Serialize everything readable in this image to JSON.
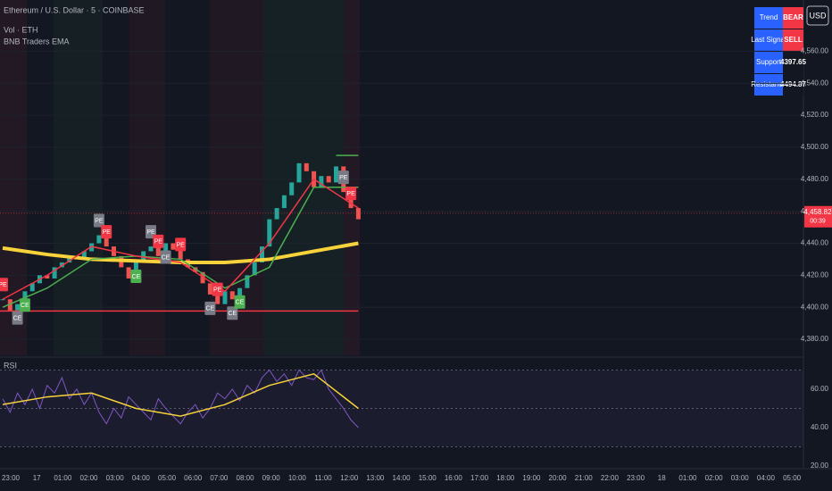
{
  "chart_data": {
    "type": "candlestick",
    "title": "Ethereum / U.S. Dollar · 5 · COINBASE",
    "indicators": [
      "Vol · ETH",
      "BNB Traders EMA"
    ],
    "currency": "USD",
    "up_color": "#26a69a",
    "down_color": "#ef5350",
    "close": [
      4405,
      4398,
      4402,
      4410,
      4415,
      4420,
      4418,
      4425,
      4428,
      4432,
      4430,
      4435,
      4440,
      4445,
      4438,
      4432,
      4425,
      4418,
      4428,
      4435,
      4438,
      4432,
      4440,
      4436,
      4430,
      4425,
      4422,
      4415,
      4408,
      4402,
      4410,
      4405,
      4412,
      4420,
      4428,
      4438,
      4455,
      4462,
      4470,
      4478,
      4490,
      4485,
      4475,
      4482,
      4478,
      4488,
      4472,
      4462,
      4455
    ],
    "ylim": [
      4370,
      4592
    ],
    "yticks": [
      {
        "value": 4380,
        "label": "4,380.00"
      },
      {
        "value": 4400,
        "label": "4,400.00"
      },
      {
        "value": 4420,
        "label": "4,420.00"
      },
      {
        "value": 4440,
        "label": "4,440.00"
      },
      {
        "value": 4460,
        "label": "4,460.00"
      },
      {
        "value": 4480,
        "label": "4,480.00"
      },
      {
        "value": 4500,
        "label": "4,500.00"
      },
      {
        "value": 4520,
        "label": "4,520.00"
      },
      {
        "value": 4540,
        "label": "4,540.00"
      },
      {
        "value": 4560,
        "label": "4,560.00"
      }
    ],
    "last_price": {
      "value": 4458.82,
      "label": "4,458.82",
      "countdown": "00:39"
    },
    "series": [
      {
        "color": "#f7d23a",
        "x": [
          0,
          6,
          12,
          18,
          24,
          30,
          36,
          42,
          48
        ],
        "values": [
          4437,
          4433,
          4430,
          4429,
          4428,
          4428,
          4430,
          4435,
          4440
        ]
      },
      {
        "color": "#4caf50",
        "x": [
          0,
          6,
          12,
          18,
          24,
          30,
          36,
          42,
          48
        ],
        "values": [
          4400,
          4412,
          4430,
          4432,
          4430,
          4412,
          4425,
          4475,
          4475
        ]
      },
      {
        "color": "#f23645",
        "x": [
          0,
          6,
          12,
          18,
          24,
          30,
          36,
          42,
          48
        ],
        "values": [
          4405,
          4420,
          4438,
          4432,
          4428,
          4410,
          4440,
          4480,
          4462
        ]
      }
    ],
    "signals": [
      {
        "label": "PE",
        "index": 0,
        "color": "#f23645"
      },
      {
        "label": "CE",
        "index": 2,
        "color": "#787b86"
      },
      {
        "label": "CE",
        "index": 3,
        "color": "#4caf50"
      },
      {
        "label": "PE",
        "index": 13,
        "color": "#787b86"
      },
      {
        "label": "PE",
        "index": 14,
        "color": "#f23645"
      },
      {
        "label": "CE",
        "index": 18,
        "color": "#4caf50"
      },
      {
        "label": "PE",
        "index": 20,
        "color": "#787b86"
      },
      {
        "label": "PE",
        "index": 21,
        "color": "#f23645"
      },
      {
        "label": "CE",
        "index": 22,
        "color": "#787b86"
      },
      {
        "label": "PE",
        "index": 24,
        "color": "#f23645"
      },
      {
        "label": "CE",
        "index": 28,
        "color": "#787b86"
      },
      {
        "label": "PE",
        "index": 29,
        "color": "#f23645"
      },
      {
        "label": "CE",
        "index": 31,
        "color": "#787b86"
      },
      {
        "label": "CE",
        "index": 32,
        "color": "#4caf50"
      },
      {
        "label": "PE",
        "index": 46,
        "color": "#787b86"
      },
      {
        "label": "PE",
        "index": 47,
        "color": "#f23645"
      }
    ],
    "table": {
      "rows": [
        [
          "Trend",
          "BEAR"
        ],
        [
          "Last Signal",
          "SELL"
        ],
        [
          "Support",
          4397.65
        ],
        [
          "Resistance",
          4494.87
        ]
      ]
    },
    "time_labels": [
      "23:00",
      "17",
      "01:00",
      "02:00",
      "03:00",
      "04:00",
      "05:00",
      "06:00",
      "07:00",
      "08:00",
      "09:00",
      "10:00",
      "11:00",
      "12:00",
      "13:00",
      "14:00",
      "15:00",
      "16:00",
      "17:00",
      "18:00",
      "19:00",
      "20:00",
      "21:00",
      "22:00",
      "23:00",
      "18",
      "01:00",
      "02:00",
      "03:00",
      "04:00",
      "05:00"
    ],
    "rsi": {
      "title": "RSI",
      "color": "#7e57c2",
      "values": [
        55,
        48,
        58,
        52,
        60,
        50,
        62,
        58,
        66,
        55,
        60,
        52,
        58,
        48,
        42,
        50,
        45,
        56,
        52,
        48,
        44,
        55,
        50,
        46,
        42,
        48,
        52,
        45,
        50,
        58,
        55,
        60,
        54,
        62,
        58,
        66,
        70,
        64,
        68,
        62,
        70,
        66,
        65,
        70,
        60,
        55,
        50,
        44,
        40
      ],
      "ma": {
        "color": "#f7d23a",
        "x": [
          0,
          6,
          12,
          18,
          24,
          30,
          36,
          42,
          48
        ],
        "values": [
          52,
          56,
          58,
          50,
          46,
          52,
          62,
          68,
          50
        ]
      },
      "ylim": [
        18.6,
        74.4
      ],
      "yticks": [
        {
          "value": 60,
          "label": "60.00"
        },
        {
          "value": 40,
          "label": "40.00"
        },
        {
          "value": 20,
          "label": "20.00"
        }
      ],
      "bands": [
        70,
        50,
        30
      ]
    }
  }
}
